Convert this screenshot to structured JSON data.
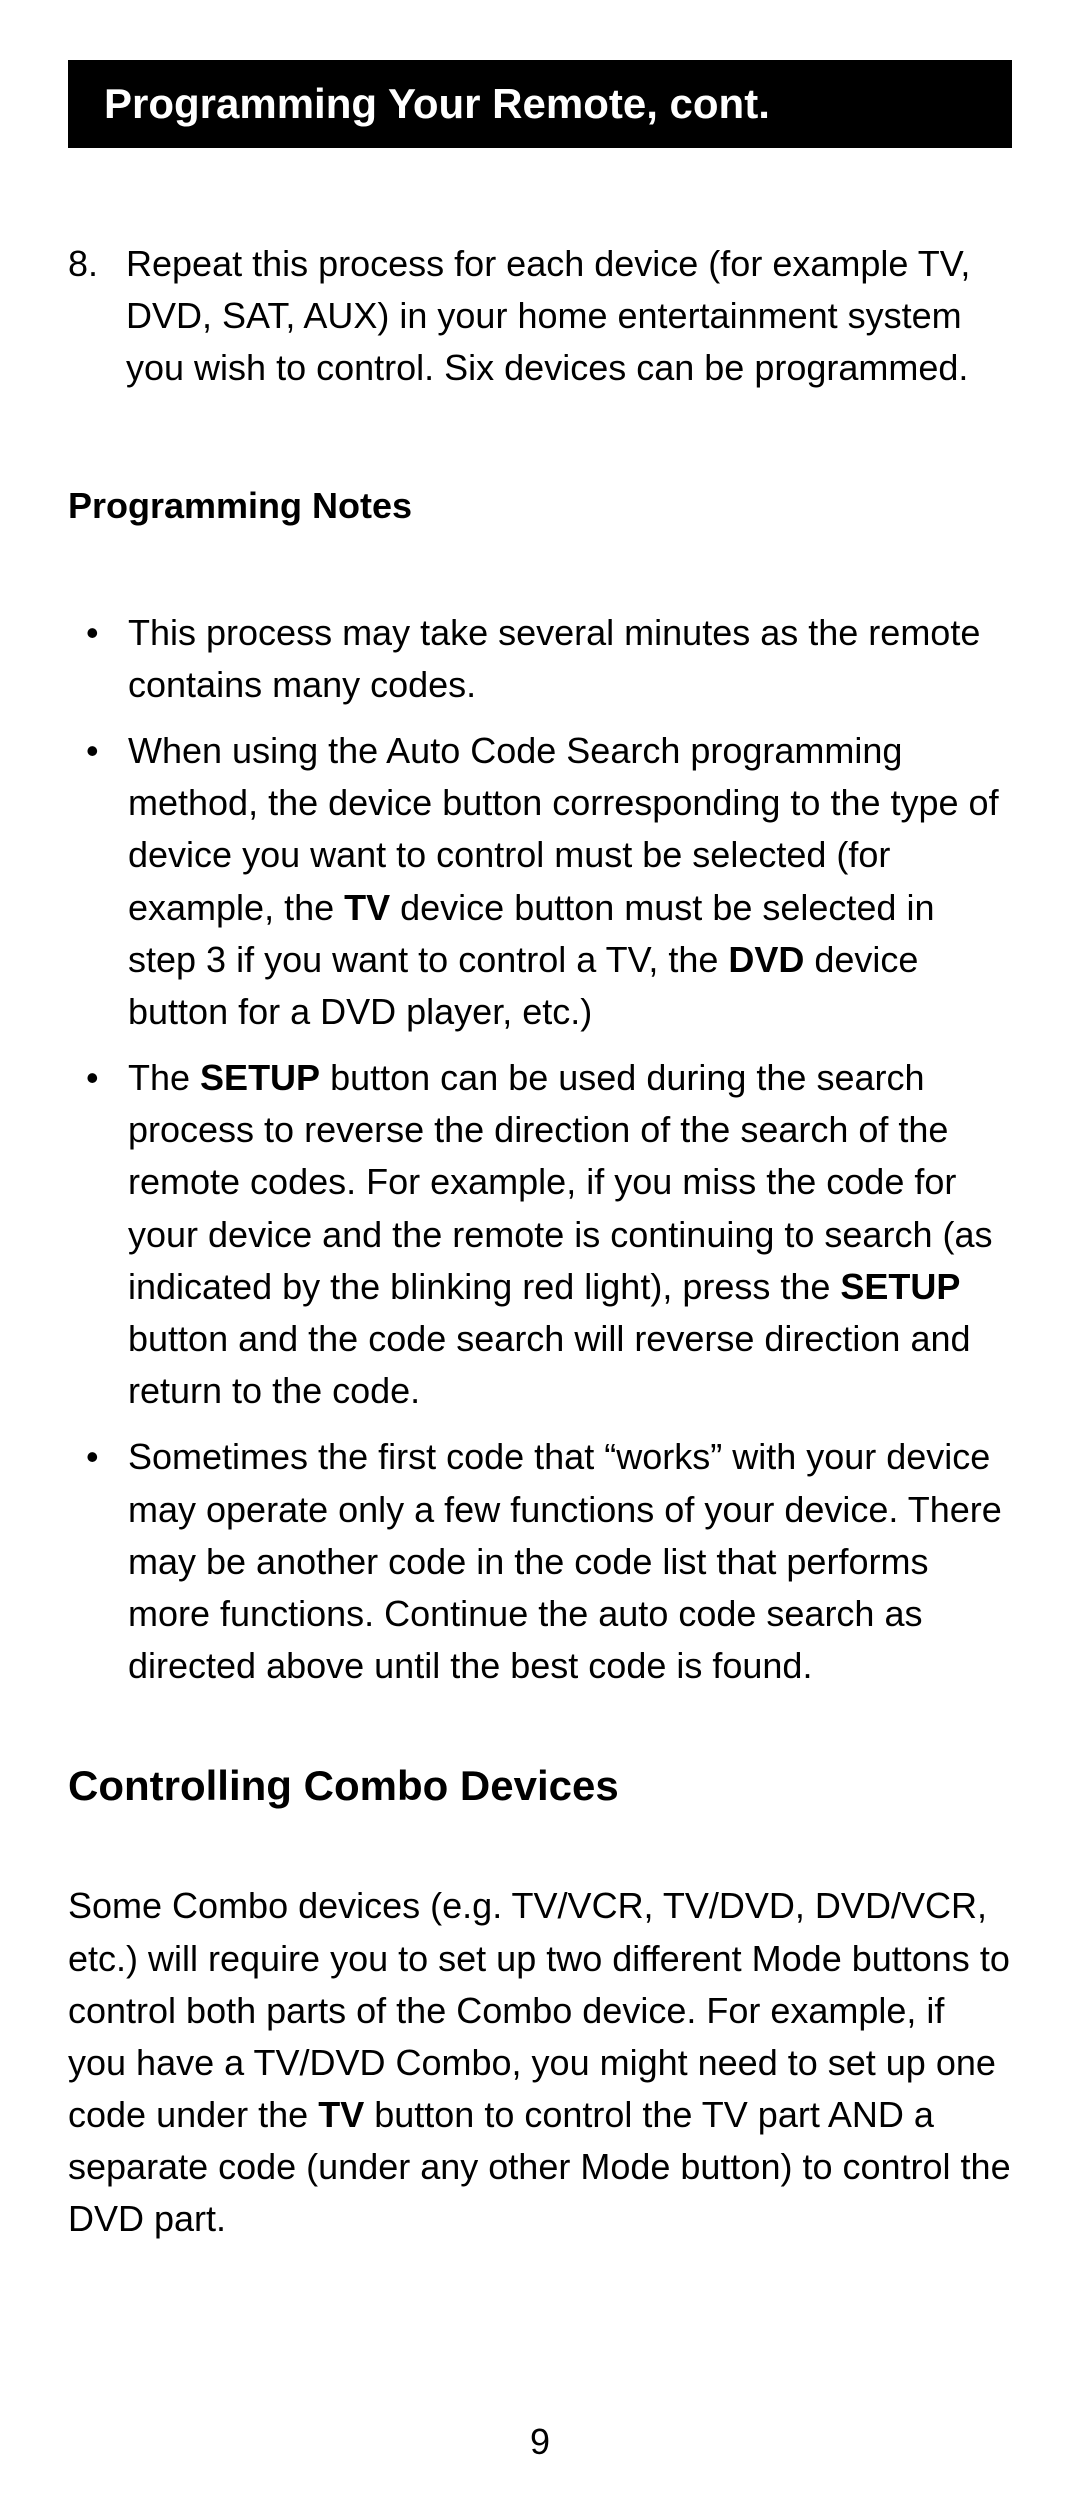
{
  "header": {
    "title": "Programming Your Remote, cont."
  },
  "step8": {
    "num": "8.",
    "text": "Repeat this process for each device (for example TV, DVD, SAT, AUX) in your home entertainment system you wish to control. Six devices can be programmed."
  },
  "notes": {
    "heading": "Programming Notes",
    "items": {
      "n1": "This process may take several minutes as the remote contains many codes.",
      "n2_a": "When using the Auto Code Search programming method, the device button corresponding to the type of device you want to control must be selected (for example, the ",
      "n2_tv": "TV",
      "n2_b": " device button must be selected in step 3 if you want to control a TV, the ",
      "n2_dvd": "DVD",
      "n2_c": " device button for a DVD player, etc.)",
      "n3_a": "The ",
      "n3_setup1": "SETUP",
      "n3_b": " button can be used during the search process to reverse the direction of the search of the remote codes. For example, if you miss the code for your device and the remote is continuing to search (as indicated by the blinking red light), press the ",
      "n3_setup2": "SETUP",
      "n3_c": " button and the code search will reverse direction and return to the code.",
      "n4": "Sometimes the first code that “works” with your device may operate only a few functions of your device. There may be another code in the code list that performs more functions. Continue the auto code search as directed above until the best code is found."
    }
  },
  "combo": {
    "heading": "Controlling Combo Devices",
    "p_a": "Some Combo devices (e.g. TV/VCR, TV/DVD, DVD/VCR, etc.) will require you to set up two different Mode buttons to control both parts of the Combo device. For example, if you have a TV/DVD Combo, you might need to set up one code under the ",
    "p_tv": "TV",
    "p_b": " button to control the TV part AND a separate code (under any other Mode button) to control the DVD part."
  },
  "pageNumber": "9",
  "colors": {
    "headerBg": "#000000",
    "headerFg": "#ffffff",
    "pageBg": "#ffffff",
    "text": "#000000"
  },
  "typography": {
    "bodySize": 36,
    "headerSize": 42,
    "lineHeight": 1.45
  }
}
